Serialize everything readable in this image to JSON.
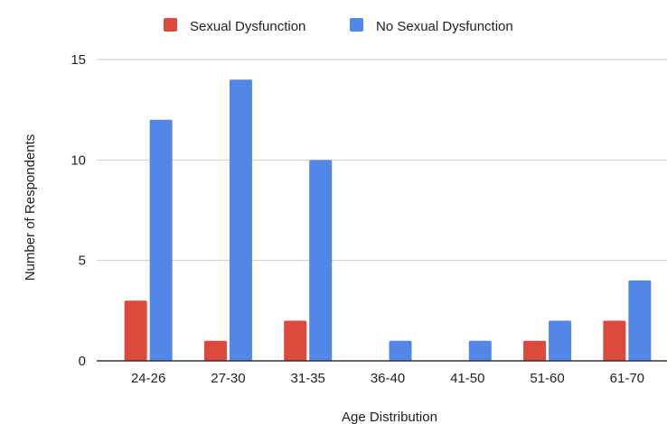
{
  "chart_data": {
    "type": "bar",
    "categories": [
      "24-26",
      "27-30",
      "31-35",
      "36-40",
      "41-50",
      "51-60",
      "61-70"
    ],
    "series": [
      {
        "name": "Sexual Dysfunction",
        "color": "#db4a3c",
        "values": [
          3,
          1,
          2,
          0,
          0,
          1,
          2
        ]
      },
      {
        "name": "No Sexual Dysfunction",
        "color": "#5287e8",
        "values": [
          12,
          14,
          10,
          1,
          1,
          2,
          4
        ]
      }
    ],
    "xlabel": "Age Distribution",
    "ylabel": "Number of Respondents",
    "ylim": [
      0,
      15
    ],
    "yticks": [
      0,
      5,
      10,
      15
    ],
    "grid": true,
    "legend_position": "top",
    "gridline_color": "#cccccc",
    "baseline_color": "#333333"
  }
}
